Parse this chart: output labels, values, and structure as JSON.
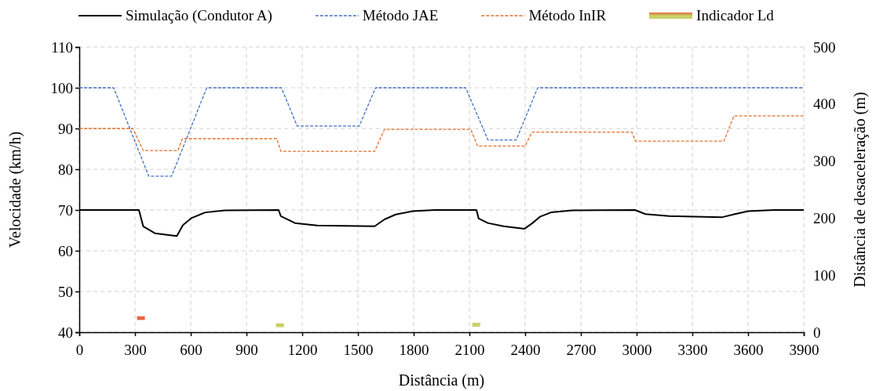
{
  "chart_data": {
    "type": "line",
    "xlabel": "Distância (m)",
    "ylabel": "Velocidade (km/h)",
    "y2label": "Distância de desaceleração (m)",
    "xlim": [
      0,
      3900
    ],
    "xticks": [
      0,
      300,
      600,
      900,
      1200,
      1500,
      1800,
      2100,
      2400,
      2700,
      3000,
      3300,
      3600,
      3900
    ],
    "ylim": [
      40,
      110
    ],
    "yticks": [
      40,
      50,
      60,
      70,
      80,
      90,
      100,
      110
    ],
    "y2lim": [
      0,
      500
    ],
    "y2ticks": [
      0,
      100,
      200,
      300,
      400,
      500
    ],
    "grid": true,
    "legend": "top",
    "series": [
      {
        "name": "Simulação (Condutor A)",
        "color": "#000000",
        "line_style": "solid",
        "x": [
          0,
          321,
          344,
          407,
          525,
          558,
          603,
          678,
          784,
          1073,
          1085,
          1161,
          1281,
          1590,
          1643,
          1703,
          1794,
          1915,
          2138,
          2150,
          2199,
          2284,
          2397,
          2440,
          2482,
          2539,
          2652,
          2991,
          3048,
          3175,
          3458,
          3529,
          3600,
          3742,
          3900
        ],
        "values": [
          70,
          70,
          66,
          64.3,
          63.6,
          66.3,
          68,
          69.4,
          69.9,
          70,
          68.5,
          66.8,
          66.2,
          66,
          67.7,
          68.9,
          69.7,
          70,
          70,
          67.9,
          66.8,
          66,
          65.4,
          66.8,
          68.4,
          69.4,
          69.9,
          70,
          69,
          68.5,
          68.2,
          69,
          69.7,
          70,
          70
        ]
      },
      {
        "name": "Método JAE",
        "color": "#4472c4",
        "line_style": "dashed",
        "x": [
          0,
          185,
          374,
          497,
          686,
          1088,
          1173,
          1507,
          1595,
          2080,
          2200,
          2352,
          2468,
          3900
        ],
        "values": [
          100,
          100,
          78.3,
          78.3,
          100,
          100,
          90.6,
          90.6,
          100,
          100,
          87.2,
          87.2,
          100,
          100
        ]
      },
      {
        "name": "Método InIR",
        "color": "#e07030",
        "line_style": "dashed",
        "x": [
          0,
          289,
          344,
          531,
          555,
          1063,
          1085,
          1590,
          1643,
          2107,
          2144,
          2400,
          2437,
          2975,
          2994,
          3470,
          3524,
          3900
        ],
        "values": [
          90,
          90,
          84.6,
          84.6,
          87.5,
          87.5,
          84.4,
          84.4,
          89.8,
          89.8,
          85.7,
          85.7,
          89.1,
          89.1,
          86.9,
          86.9,
          93.1,
          93.1
        ]
      },
      {
        "name": "Indicador Ld",
        "type": "bar",
        "axis": "y2",
        "colors": [
          "#e8663c",
          "#c9cf6a",
          "#c9cf6a"
        ],
        "x": [
          332,
          1080,
          2137
        ],
        "base": [
          21.5,
          8.8,
          9.8
        ],
        "values": [
          6.5,
          6.8,
          6.8
        ]
      }
    ]
  }
}
